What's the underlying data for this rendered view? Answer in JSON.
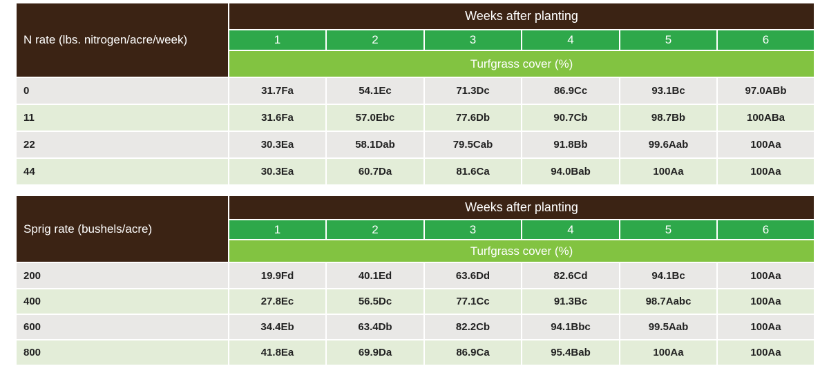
{
  "tables": [
    {
      "row_header": "N rate (lbs. nitrogen/acre/week)",
      "group_header": "Weeks after planting",
      "weeks": [
        "1",
        "2",
        "3",
        "4",
        "5",
        "6"
      ],
      "measure": "Turfgrass cover (%)",
      "rows": [
        {
          "label": "0",
          "values": [
            "31.7Fa",
            "54.1Ec",
            "71.3Dc",
            "86.9Cc",
            "93.1Bc",
            "97.0ABb"
          ]
        },
        {
          "label": "11",
          "values": [
            "31.6Fa",
            "57.0Ebc",
            "77.6Db",
            "90.7Cb",
            "98.7Bb",
            "100ABa"
          ]
        },
        {
          "label": "22",
          "values": [
            "30.3Ea",
            "58.1Dab",
            "79.5Cab",
            "91.8Bb",
            "99.6Aab",
            "100Aa"
          ]
        },
        {
          "label": "44",
          "values": [
            "30.3Ea",
            "60.7Da",
            "81.6Ca",
            "94.0Bab",
            "100Aa",
            "100Aa"
          ]
        }
      ]
    },
    {
      "row_header": "Sprig rate (bushels/acre)",
      "group_header": "Weeks after planting",
      "weeks": [
        "1",
        "2",
        "3",
        "4",
        "5",
        "6"
      ],
      "measure": "Turfgrass cover (%)",
      "rows": [
        {
          "label": "200",
          "values": [
            "19.9Fd",
            "40.1Ed",
            "63.6Dd",
            "82.6Cd",
            "94.1Bc",
            "100Aa"
          ]
        },
        {
          "label": "400",
          "values": [
            "27.8Ec",
            "56.5Dc",
            "77.1Cc",
            "91.3Bc",
            "98.7Aabc",
            "100Aa"
          ]
        },
        {
          "label": "600",
          "values": [
            "34.4Eb",
            "63.4Db",
            "82.2Cb",
            "94.1Bbc",
            "99.5Aab",
            "100Aa"
          ]
        },
        {
          "label": "800",
          "values": [
            "41.8Ea",
            "69.9Da",
            "86.9Ca",
            "95.4Bab",
            "100Aa",
            "100Aa"
          ]
        }
      ]
    }
  ]
}
